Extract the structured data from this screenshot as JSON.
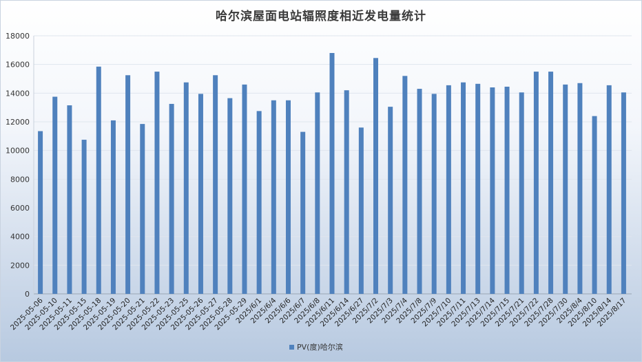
{
  "chart_data": {
    "type": "bar",
    "title": "哈尔滨屋面电站辐照度相近发电量统计",
    "xlabel": "",
    "ylabel": "",
    "ylim": [
      0,
      18000
    ],
    "yticks": [
      0,
      2000,
      4000,
      6000,
      8000,
      10000,
      12000,
      14000,
      16000,
      18000
    ],
    "grid": true,
    "legend_position": "bottom",
    "bar_color": "#4f81bd",
    "categories": [
      "2025-05-06",
      "2025-05-10",
      "2025-05-11",
      "2025-05-15",
      "2025-05-18",
      "2025-05-19",
      "2025-05-20",
      "2025-05-21",
      "2025-05-22",
      "2025-05-23",
      "2025-05-25",
      "2025-05-26",
      "2025-05-27",
      "2025-05-28",
      "2025-05-29",
      "2025/6/1",
      "2025/6/4",
      "2025/6/6",
      "2025/6/7",
      "2025/6/8",
      "2025/6/11",
      "2025/6/14",
      "2025/6/27",
      "2025/7/2",
      "2025/7/3",
      "2025/7/4",
      "2025/7/8",
      "2025/7/9",
      "2025/7/10",
      "2025/7/11",
      "2025/7/13",
      "2025/7/14",
      "2025/7/15",
      "2025/7/21",
      "2025/7/22",
      "2025/7/28",
      "2025/7/30",
      "2025/8/4",
      "2025/8/10",
      "2025/8/14",
      "2025/8/17"
    ],
    "series": [
      {
        "name": "PV(度)哈尔滨",
        "values": [
          11350,
          13750,
          13150,
          10750,
          15850,
          12100,
          15250,
          11850,
          15500,
          13250,
          14750,
          13950,
          15250,
          13650,
          14600,
          12750,
          13500,
          13500,
          11300,
          14050,
          16800,
          14200,
          11600,
          16450,
          13050,
          15200,
          14300,
          13950,
          14550,
          14750,
          14650,
          14400,
          14450,
          14050,
          15500,
          15500,
          14600,
          14700,
          12400,
          14550,
          14050
        ]
      }
    ]
  }
}
